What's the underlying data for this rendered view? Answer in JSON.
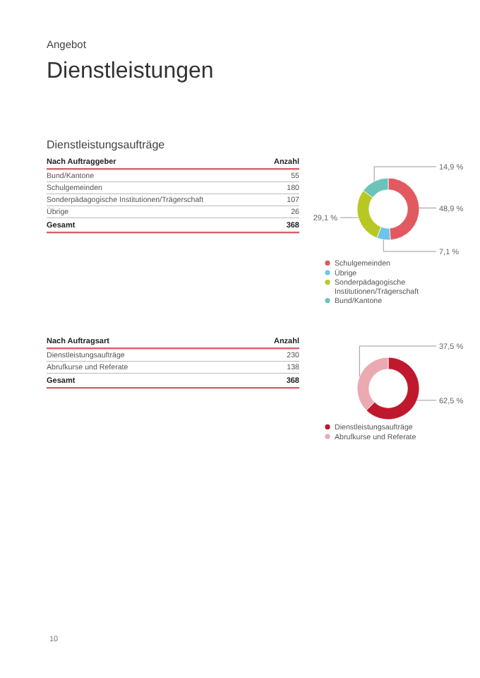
{
  "chart_data": [
    {
      "type": "other",
      "title": "Dienstleistungsaufträge",
      "annotations": [
        "Angebot",
        "Dienstleistungen",
        "Gesamt",
        "368",
        "10"
      ],
      "xlabel": "Nach Auftraggeber",
      "ylabel": "Anzahl",
      "categories": [
        "Bund/Kantone",
        "Schulgemeinden",
        "Sonderpädagogische Institutionen/Trägerschaft",
        "Übrige"
      ],
      "values": [
        55,
        180,
        107,
        26
      ],
      "data_labels": true
    },
    {
      "type": "donut",
      "categories": [
        "Schulgemeinden",
        "Übrige",
        "Sonderpädagogische Institutionen/Trägerschaft",
        "Bund/Kantone"
      ],
      "values": [
        48.9,
        7.1,
        29.1,
        14.9
      ],
      "colors": [
        "#e05a60",
        "#6ec3ea",
        "#b8c823",
        "#6cc4b8"
      ],
      "value_labels": [
        "48,9 %",
        "7,1 %",
        "29,1 %",
        "14,9 %"
      ],
      "legend": "bottom"
    },
    {
      "type": "other",
      "annotations": [
        "Gesamt",
        "368"
      ],
      "xlabel": "Nach Auftragsart",
      "ylabel": "Anzahl",
      "categories": [
        "Dienstleistungsaufträge",
        "Abrufkurse und Referate"
      ],
      "values": [
        230,
        138
      ],
      "data_labels": true
    },
    {
      "type": "donut",
      "categories": [
        "Dienstleistungsaufträge",
        "Abrufkurse und Referate"
      ],
      "values": [
        62.5,
        37.5
      ],
      "colors": [
        "#c0182c",
        "#eba9b1"
      ],
      "value_labels": [
        "62,5 %",
        "37,5 %"
      ],
      "legend": "bottom"
    }
  ]
}
